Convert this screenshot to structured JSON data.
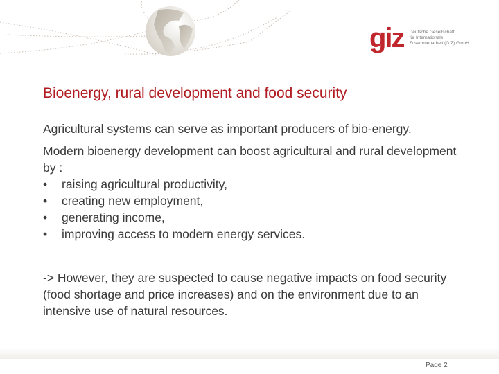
{
  "logo": {
    "mark": "giz",
    "text": [
      "Deutsche Gesellschaft",
      "für Internationale",
      "Zusammenarbeit (GIZ) GmbH"
    ],
    "color": "#c0272d"
  },
  "slide": {
    "title": "Bioenergy, rural development and food security",
    "paragraph1": "Agricultural systems can serve as important producers of bio-energy.",
    "paragraph2": "Modern bioenergy development can boost agricultural and rural development by :",
    "bullets": [
      "raising agricultural productivity,",
      "creating new employment,",
      "generating income,",
      "improving access to modern energy services."
    ],
    "bullet_glyph": "•",
    "note": "-> However, they are suspected to cause negative impacts on food security (food shortage and price increases) and on the environment due to an intensive use of natural resources."
  },
  "footer": {
    "page": "Page 2"
  },
  "colors": {
    "title": "#b01c22",
    "text": "#3a3a3a"
  }
}
